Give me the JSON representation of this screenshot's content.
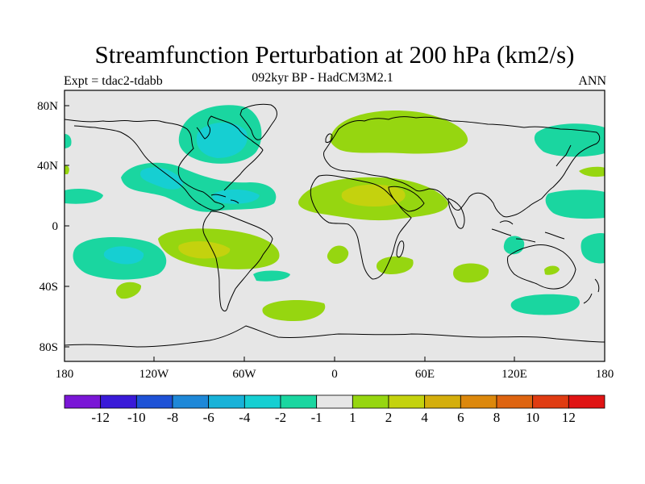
{
  "title": "Streamfunction Perturbation at 200 hPa (km2/s)",
  "subtitle": {
    "left": "Expt = tdac2-tdabb",
    "center": "092kyr BP - HadCM3M2.1",
    "right": "ANN"
  },
  "y_axis_labels": [
    "80N",
    "40N",
    "0",
    "40S",
    "80S"
  ],
  "x_axis_labels": [
    "180",
    "120W",
    "60W",
    "0",
    "60E",
    "120E",
    "180"
  ],
  "colorbar": {
    "colors": [
      "#7a16d6",
      "#3a1ad8",
      "#1e52d6",
      "#1e88d8",
      "#18b2d8",
      "#16cfd2",
      "#1ad6a0",
      "#e6e6e6",
      "#96d610",
      "#c4d20e",
      "#d4ae0c",
      "#dc880c",
      "#de6410",
      "#e03c12",
      "#e01414"
    ],
    "labels": [
      "-12",
      "-10",
      "-8",
      "-6",
      "-4",
      "-2",
      "-1",
      "1",
      "2",
      "4",
      "6",
      "8",
      "10",
      "12"
    ]
  }
}
